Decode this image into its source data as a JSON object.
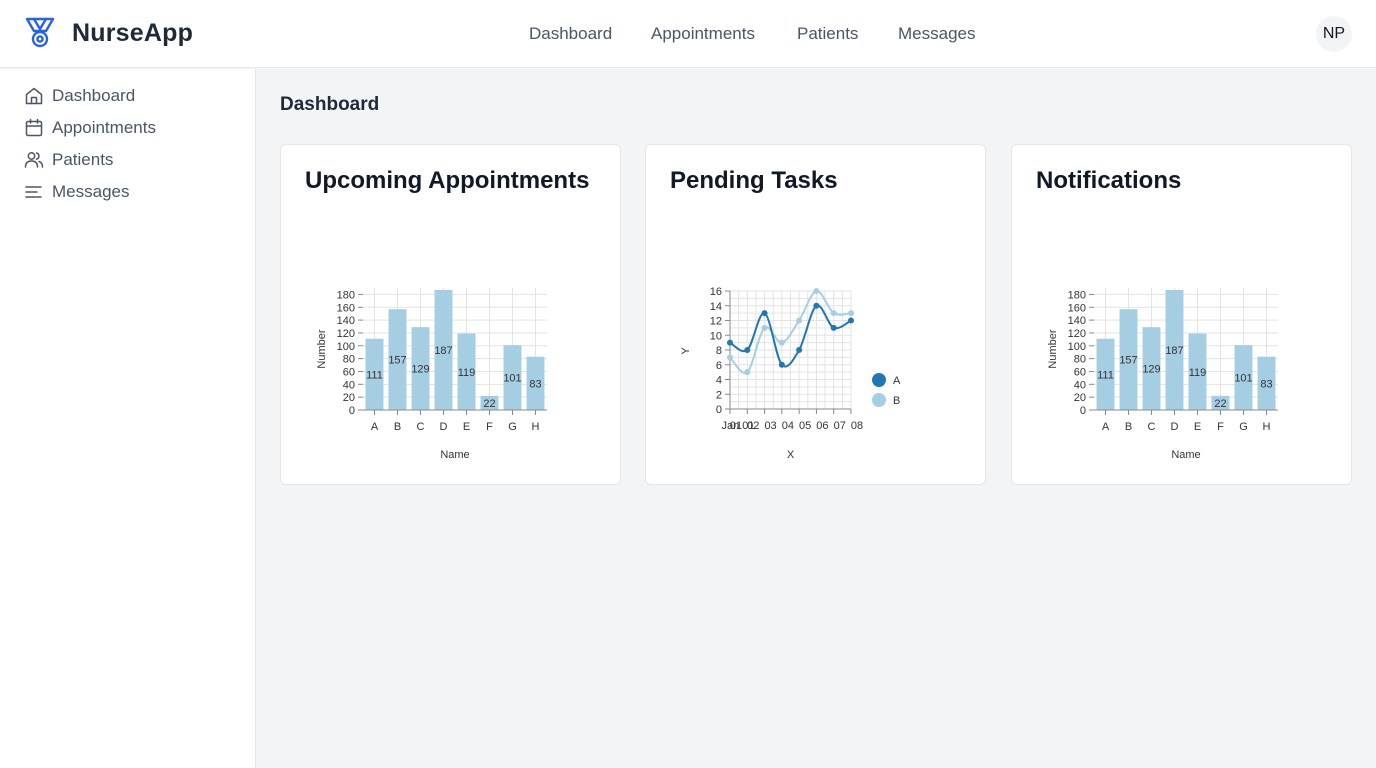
{
  "app": {
    "name": "NurseApp",
    "logo_icon": "shield-medal-icon",
    "brand_color": "#2563eb"
  },
  "topnav": {
    "items": [
      {
        "label": "Dashboard"
      },
      {
        "label": "Appointments"
      },
      {
        "label": "Patients"
      },
      {
        "label": "Messages"
      }
    ]
  },
  "user": {
    "initials": "NP"
  },
  "sidebar": {
    "items": [
      {
        "label": "Dashboard",
        "icon": "home-icon"
      },
      {
        "label": "Appointments",
        "icon": "calendar-icon"
      },
      {
        "label": "Patients",
        "icon": "users-icon"
      },
      {
        "label": "Messages",
        "icon": "menu-lines-icon"
      }
    ]
  },
  "main": {
    "title": "Dashboard",
    "cards": [
      {
        "title": "Upcoming Appointments"
      },
      {
        "title": "Pending Tasks"
      },
      {
        "title": "Notifications"
      }
    ]
  },
  "chart_data": [
    {
      "type": "bar",
      "categories": [
        "A",
        "B",
        "C",
        "D",
        "E",
        "F",
        "G",
        "H"
      ],
      "values": [
        111,
        157,
        129,
        187,
        119,
        22,
        101,
        83
      ],
      "xlabel": "Name",
      "ylabel": "Number",
      "ylim": [
        0,
        190
      ],
      "yticks": [
        0,
        20,
        40,
        60,
        80,
        100,
        120,
        140,
        160,
        180
      ],
      "grid": true,
      "color": "#a6cee3"
    },
    {
      "type": "line",
      "x": [
        "Jan 01",
        "Jan 02",
        "Jan 03",
        "Jan 04",
        "Jan 05",
        "Jan 06",
        "Jan 07",
        "Jan 08"
      ],
      "xticklabels": [
        "Jan 01",
        "01",
        "02",
        "03",
        "04",
        "05",
        "06",
        "07",
        "08"
      ],
      "series": [
        {
          "name": "A",
          "values": [
            9,
            8,
            13,
            6,
            8,
            14,
            11,
            12
          ],
          "color": "#1f78b4"
        },
        {
          "name": "B",
          "values": [
            7,
            5,
            11,
            9,
            12,
            16,
            13,
            13
          ],
          "color": "#a6cee3"
        }
      ],
      "xlabel": "X",
      "ylabel": "Y",
      "ylim": [
        0,
        16
      ],
      "yticks": [
        0,
        2,
        4,
        6,
        8,
        10,
        12,
        14,
        16
      ],
      "grid": true,
      "legend": "right"
    },
    {
      "type": "bar",
      "categories": [
        "A",
        "B",
        "C",
        "D",
        "E",
        "F",
        "G",
        "H"
      ],
      "values": [
        111,
        157,
        129,
        187,
        119,
        22,
        101,
        83
      ],
      "xlabel": "Name",
      "ylabel": "Number",
      "ylim": [
        0,
        190
      ],
      "yticks": [
        0,
        20,
        40,
        60,
        80,
        100,
        120,
        140,
        160,
        180
      ],
      "grid": true,
      "color": "#a6cee3"
    }
  ]
}
